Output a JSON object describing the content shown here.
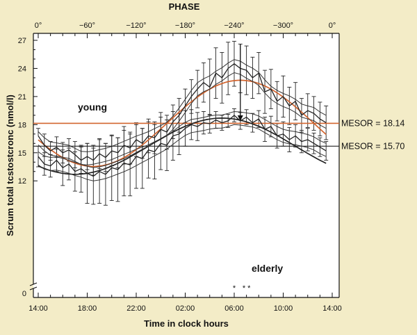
{
  "chart_data": {
    "type": "line",
    "top_axis_title": "PHASE",
    "top_ticks": [
      {
        "label": "0°",
        "hour": 14
      },
      {
        "label": "−60°",
        "hour": 18
      },
      {
        "label": "−120°",
        "hour": 22
      },
      {
        "label": "−180°",
        "hour": 26
      },
      {
        "label": "−240°",
        "hour": 30
      },
      {
        "label": "−300°",
        "hour": 34
      },
      {
        "label": "0°",
        "hour": 38
      }
    ],
    "xlabel": "Time in clock hours",
    "x_ticks": [
      {
        "label": "14:00",
        "hour": 14
      },
      {
        "label": "18:00",
        "hour": 18
      },
      {
        "label": "22:00",
        "hour": 22
      },
      {
        "label": "02:00",
        "hour": 26
      },
      {
        "label": "06:00",
        "hour": 30
      },
      {
        "label": "10:00",
        "hour": 34
      },
      {
        "label": "14:00",
        "hour": 38
      }
    ],
    "ylabel": "Scrum total tcstostcronc (nmol/l)",
    "y_ticks": [
      0,
      12,
      15,
      18,
      21,
      24,
      27
    ],
    "ylim": [
      0,
      27.5
    ],
    "y_break": true,
    "xlim_hours": [
      14,
      38
    ],
    "series": [
      {
        "name": "young",
        "color": "#222222",
        "hours": [
          14,
          14.5,
          15,
          15.5,
          16,
          16.5,
          17,
          17.5,
          18,
          18.5,
          19,
          19.5,
          20,
          20.5,
          21,
          21.5,
          22,
          22.5,
          23,
          23.5,
          24,
          24.5,
          25,
          25.5,
          26,
          26.5,
          27,
          27.5,
          28,
          28.5,
          29,
          29.5,
          30,
          30.5,
          31,
          31.5,
          32,
          32.5,
          33,
          33.5,
          34,
          34.5,
          35,
          35.5,
          36,
          36.5,
          37,
          37.5
        ],
        "mean": [
          16.8,
          15.8,
          15.2,
          15.6,
          15.0,
          15.3,
          14.8,
          14.2,
          14.6,
          14.2,
          14.9,
          14.5,
          15.2,
          15.0,
          15.8,
          15.5,
          16.4,
          16.0,
          16.8,
          16.6,
          17.5,
          17.2,
          18.3,
          19.0,
          20.0,
          21.0,
          21.8,
          22.5,
          22.0,
          23.5,
          23.0,
          24.0,
          24.5,
          24.0,
          23.8,
          23.0,
          23.5,
          21.5,
          21.8,
          20.5,
          21.0,
          20.0,
          20.5,
          19.0,
          19.5,
          19.2,
          18.6,
          18.2
        ],
        "upper": [
          17.6,
          17.0,
          16.2,
          16.7,
          16.1,
          16.5,
          16.2,
          15.6,
          16.0,
          15.8,
          16.5,
          16.0,
          16.8,
          16.6,
          17.8,
          17.2,
          18.2,
          17.6,
          18.6,
          18.3,
          19.3,
          19.0,
          20.1,
          20.8,
          21.8,
          22.8,
          23.8,
          24.6,
          25.0,
          26.2,
          25.7,
          26.8,
          26.9,
          26.6,
          26.4,
          25.2,
          25.7,
          23.8,
          23.9,
          22.6,
          23.2,
          22.0,
          22.5,
          20.8,
          21.3,
          21.0,
          20.4,
          20.0
        ],
        "lower": [
          null,
          14.6,
          14.2,
          14.5,
          13.9,
          14.1,
          13.4,
          12.8,
          13.2,
          12.6,
          13.3,
          13.0,
          13.6,
          13.4,
          13.8,
          13.8,
          14.6,
          14.4,
          15.0,
          14.9,
          15.7,
          15.4,
          16.5,
          17.2,
          18.2,
          19.2,
          19.8,
          20.4,
          19.0,
          20.8,
          20.3,
          21.2,
          22.1,
          21.4,
          21.2,
          20.8,
          21.3,
          19.2,
          19.7,
          18.4,
          18.8,
          18.0,
          18.5,
          17.2,
          17.7,
          17.4,
          16.8,
          16.4
        ],
        "cosinor_color": "#d2642e",
        "mesor": 18.14,
        "mesor_label": "MESOR = 18.14",
        "amplitude": 4.6,
        "acrophase_hour": 30.5
      },
      {
        "name": "elderly",
        "color": "#222222",
        "hours": [
          14,
          14.5,
          15,
          15.5,
          16,
          16.5,
          17,
          17.5,
          18,
          18.5,
          19,
          19.5,
          20,
          20.5,
          21,
          21.5,
          22,
          22.5,
          23,
          23.5,
          24,
          24.5,
          25,
          25.5,
          26,
          26.5,
          27,
          27.5,
          28,
          28.5,
          29,
          29.5,
          30,
          30.5,
          31,
          31.5,
          32,
          32.5,
          33,
          33.5,
          34,
          34.5,
          35,
          35.5,
          36,
          36.5,
          37,
          37.5
        ],
        "mean": [
          14.6,
          13.8,
          13.6,
          14.2,
          13.4,
          13.8,
          13.0,
          13.3,
          12.8,
          12.5,
          13.0,
          12.7,
          13.4,
          13.2,
          13.9,
          13.7,
          14.6,
          14.4,
          15.3,
          15.1,
          16.0,
          15.8,
          16.8,
          17.0,
          17.6,
          18.0,
          17.8,
          18.2,
          18.1,
          18.5,
          18.2,
          18.4,
          19.0,
          18.4,
          18.8,
          18.2,
          18.6,
          17.5,
          17.8,
          16.8,
          17.0,
          16.4,
          16.8,
          16.2,
          16.4,
          16.0,
          15.6,
          15.2
        ],
        "upper": [
          15.7,
          15.0,
          14.8,
          15.4,
          15.3,
          15.5,
          15.1,
          15.8,
          16.0,
          15.5,
          16.4,
          16.0,
          16.9,
          16.6,
          17.4,
          17.0,
          18.0,
          17.6,
          18.3,
          18.0,
          18.8,
          18.5,
          19.4,
          19.2,
          19.5,
          19.6,
          19.3,
          19.4,
          19.1,
          19.4,
          19.0,
          19.1,
          19.7,
          19.3,
          19.6,
          19.2,
          19.5,
          18.8,
          18.9,
          18.1,
          18.3,
          17.7,
          18.0,
          17.4,
          17.6,
          17.1,
          16.6,
          16.2
        ],
        "lower": [
          13.5,
          12.6,
          12.4,
          13.0,
          11.5,
          12.1,
          10.9,
          10.8,
          9.6,
          9.5,
          9.6,
          9.4,
          9.9,
          9.8,
          10.4,
          10.4,
          11.2,
          11.2,
          12.3,
          12.2,
          13.2,
          13.1,
          14.2,
          14.8,
          15.7,
          16.4,
          16.3,
          17.0,
          17.1,
          17.6,
          17.4,
          17.7,
          18.3,
          17.5,
          18.0,
          17.2,
          17.7,
          16.2,
          16.7,
          15.5,
          15.7,
          15.1,
          15.6,
          15.0,
          15.2,
          14.9,
          14.6,
          14.2
        ],
        "cosinor_color": "#222222",
        "mesor": 15.7,
        "mesor_label": "MESOR = 15.70",
        "amplitude": 3.0,
        "acrophase_hour": 29.0
      }
    ],
    "acrophase_arrow": {
      "hour": 30.5,
      "from": 26.6,
      "to": 18.4
    },
    "significance_marks": [
      {
        "label": "*",
        "hour": 30.0
      },
      {
        "label": "* *",
        "hour": 31.0
      }
    ]
  }
}
